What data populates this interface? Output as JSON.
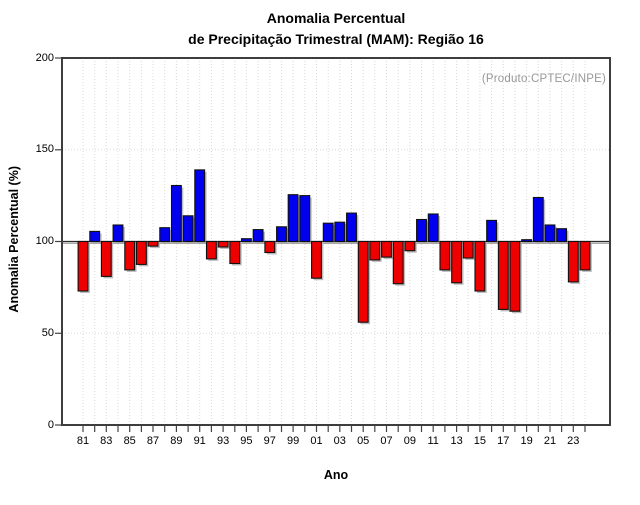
{
  "title": {
    "line1": "Anomalia Percentual",
    "line2": "de Precipitação Trimestral (MAM): Região 16"
  },
  "annotation": "(Produto:CPTEC/INPE)",
  "colors": {
    "bar_above": "#0000ee",
    "bar_below": "#ee0000",
    "bar_border": "#101010",
    "bar_shadow": "#a8a8a8",
    "baseline": "#2a2a2a",
    "grid": "#ddd9d9",
    "frame": "#3d3d3d",
    "tick": "#444444",
    "annotation": "#989898"
  },
  "chart_data": {
    "type": "bar",
    "title": "Anomalia Percentual de Precipitação Trimestral (MAM): Região 16",
    "xlabel": "Ano",
    "ylabel": "Anomalia Percentual (%)",
    "ylim": [
      0,
      200
    ],
    "y_ticks": [
      0,
      50,
      100,
      150,
      200
    ],
    "y_tick_labels": [
      "0",
      "50",
      "100",
      "150",
      "200"
    ],
    "baseline": 100,
    "grid": true,
    "legend": false,
    "color_rule": "blue above 100% baseline, red below",
    "categories": [
      "81",
      "82",
      "83",
      "84",
      "85",
      "86",
      "87",
      "88",
      "89",
      "90",
      "91",
      "92",
      "93",
      "94",
      "95",
      "96",
      "97",
      "98",
      "99",
      "00",
      "01",
      "02",
      "03",
      "04",
      "05",
      "06",
      "07",
      "08",
      "09",
      "10",
      "11",
      "12",
      "13",
      "14",
      "15",
      "16",
      "17",
      "18",
      "19",
      "20",
      "21",
      "22",
      "23",
      "24"
    ],
    "values": [
      73,
      105.5,
      81,
      109,
      84.5,
      87.5,
      97.5,
      107.5,
      130.5,
      114,
      139,
      90.5,
      97,
      88,
      101.5,
      106.5,
      94,
      108,
      125.5,
      125,
      80,
      110,
      110.5,
      115.5,
      56,
      90,
      91.5,
      77,
      95,
      112,
      115,
      84.5,
      77.5,
      91,
      73,
      111.5,
      63,
      62,
      101,
      124,
      109,
      107,
      78,
      84.5
    ],
    "x_tick_labels": [
      "81",
      "83",
      "85",
      "87",
      "89",
      "91",
      "93",
      "95",
      "97",
      "99",
      "01",
      "03",
      "05",
      "07",
      "09",
      "11",
      "13",
      "15",
      "17",
      "19",
      "21",
      "23"
    ],
    "x_tick_every": 2
  }
}
